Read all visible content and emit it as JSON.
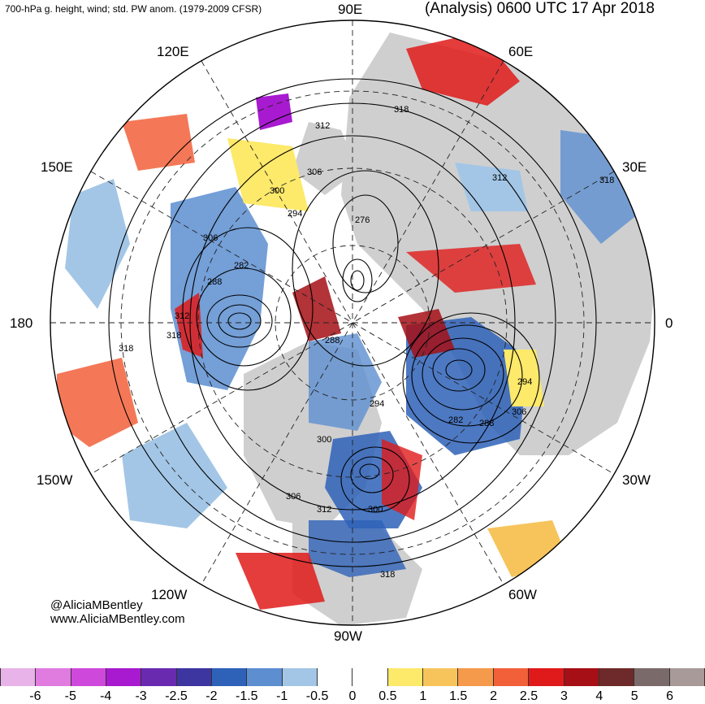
{
  "header": {
    "left_title": "700-hPa g. height, wind; std. PW anom. (1979-2009 CFSR)",
    "right_title": "(Analysis) 0600 UTC 17 Apr 2018"
  },
  "longitude_labels": {
    "e90": "90E",
    "e60": "60E",
    "e120": "120E",
    "e150": "150E",
    "e30": "30E",
    "zero": "0",
    "d180": "180",
    "w150": "150W",
    "w30": "30W",
    "w120": "120W",
    "w60": "60W",
    "w90": "90W"
  },
  "contour_labels": [
    "318",
    "312",
    "306",
    "312",
    "300",
    "294",
    "276",
    "306",
    "282",
    "288",
    "312",
    "318",
    "288",
    "318",
    "294",
    "294",
    "282",
    "288",
    "306",
    "300",
    "306",
    "312",
    "300",
    "318"
  ],
  "credit": {
    "handle": "@AliciaMBentley",
    "website": "www.AliciaMBentley.com"
  },
  "colorbar": {
    "colors": [
      "#e8b3e8",
      "#e07be0",
      "#cf48dc",
      "#a81ad0",
      "#6a2ab0",
      "#3d36a0",
      "#2e62b8",
      "#5c8ed0",
      "#a3c6e6",
      "#ffffff",
      "#ffffff",
      "#fde96a",
      "#f7c45c",
      "#f59a4a",
      "#f2603a",
      "#e01a1a",
      "#a50f15",
      "#6e2a2a",
      "#7a6a6a",
      "#a89a98"
    ],
    "tick_labels": [
      "-6",
      "-5",
      "-4",
      "-3",
      "-2.5",
      "-2",
      "-1.5",
      "-1",
      "-0.5",
      "0",
      "0.5",
      "1",
      "1.5",
      "2",
      "2.5",
      "3",
      "4",
      "5",
      "6"
    ],
    "tick_value_range": [
      -6,
      6
    ]
  }
}
